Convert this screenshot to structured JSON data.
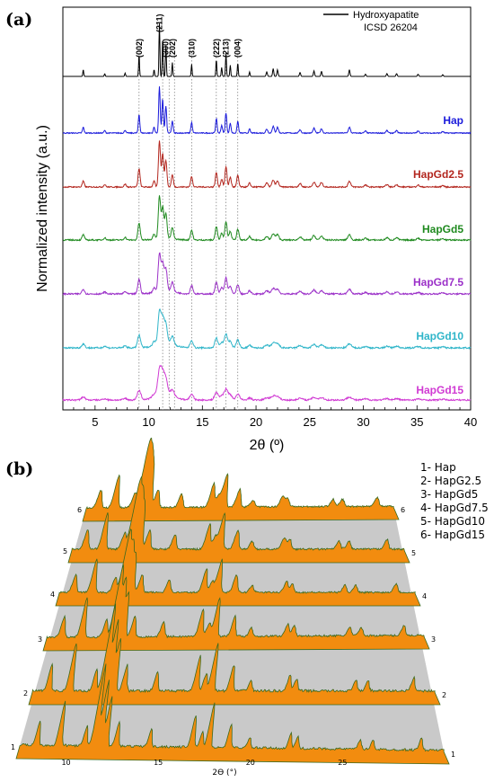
{
  "chart_data": [
    {
      "panel": "(a)",
      "type": "line",
      "xlabel": "2θ (º)",
      "ylabel": "Normalized intensity (a.u.)",
      "xlim": [
        2,
        40
      ],
      "x_ticks": [
        5,
        10,
        15,
        20,
        25,
        30,
        35,
        40
      ],
      "legend": {
        "entries": [
          "Hydroxyapatite",
          "ICSD 26204"
        ],
        "placement": "top-right"
      },
      "reference_lines": [
        9.1,
        11.3,
        11.9,
        12.4,
        14.0,
        16.3,
        17.2,
        18.3
      ],
      "miller_indices": [
        {
          "label": "(002)",
          "x": 9.1
        },
        {
          "label": "(211)",
          "x": 11.0
        },
        {
          "label": "(300)",
          "x": 11.6
        },
        {
          "label": "(202)",
          "x": 12.2
        },
        {
          "label": "(310)",
          "x": 14.0
        },
        {
          "label": "(222)",
          "x": 16.3
        },
        {
          "label": "(213)",
          "x": 17.2
        },
        {
          "label": "(004)",
          "x": 18.3
        }
      ],
      "peaks": [
        {
          "x": 3.9,
          "h": 0.12
        },
        {
          "x": 5.9,
          "h": 0.05
        },
        {
          "x": 7.8,
          "h": 0.06
        },
        {
          "x": 9.1,
          "h": 0.38
        },
        {
          "x": 10.5,
          "h": 0.12
        },
        {
          "x": 11.0,
          "h": 0.95
        },
        {
          "x": 11.3,
          "h": 0.7
        },
        {
          "x": 11.6,
          "h": 0.55
        },
        {
          "x": 12.2,
          "h": 0.25
        },
        {
          "x": 14.0,
          "h": 0.22
        },
        {
          "x": 16.3,
          "h": 0.3
        },
        {
          "x": 16.8,
          "h": 0.16
        },
        {
          "x": 17.2,
          "h": 0.42
        },
        {
          "x": 17.6,
          "h": 0.2
        },
        {
          "x": 18.3,
          "h": 0.24
        },
        {
          "x": 19.4,
          "h": 0.08
        },
        {
          "x": 21.0,
          "h": 0.08
        },
        {
          "x": 21.6,
          "h": 0.14
        },
        {
          "x": 22.0,
          "h": 0.12
        },
        {
          "x": 24.1,
          "h": 0.07
        },
        {
          "x": 25.4,
          "h": 0.1
        },
        {
          "x": 26.1,
          "h": 0.09
        },
        {
          "x": 28.7,
          "h": 0.12
        },
        {
          "x": 30.2,
          "h": 0.04
        },
        {
          "x": 32.2,
          "h": 0.05
        },
        {
          "x": 33.1,
          "h": 0.05
        },
        {
          "x": 35.1,
          "h": 0.04
        },
        {
          "x": 37.4,
          "h": 0.03
        }
      ],
      "series": [
        {
          "name": "Hydroxyapatite ICSD 26204",
          "color": "#000000",
          "amp": 1.0,
          "width": 0.06,
          "noise": 0.0
        },
        {
          "name": "Hap",
          "color": "#1a1adb",
          "amp": 1.0,
          "width": 0.1,
          "noise": 0.01
        },
        {
          "name": "HapGd2.5",
          "color": "#b3261e",
          "amp": 1.0,
          "width": 0.13,
          "noise": 0.012
        },
        {
          "name": "HapGd5",
          "color": "#1f8a1f",
          "amp": 0.95,
          "width": 0.15,
          "noise": 0.014
        },
        {
          "name": "HapGd7.5",
          "color": "#9b30c8",
          "amp": 0.9,
          "width": 0.17,
          "noise": 0.016
        },
        {
          "name": "HapGd10",
          "color": "#2fb5c9",
          "amp": 0.8,
          "width": 0.2,
          "noise": 0.018
        },
        {
          "name": "HapGd15",
          "color": "#d03ad3",
          "amp": 0.7,
          "width": 0.24,
          "noise": 0.02
        }
      ]
    },
    {
      "panel": "(b)",
      "type": "area",
      "xlabel": "2ϴ (°)",
      "x_ticks": [
        10,
        15,
        20,
        25
      ],
      "x_range": [
        7,
        30
      ],
      "fill_color": "#f28c0f",
      "line_color": "#3a6a1f",
      "wall_color": "#c9c9c9",
      "legend": [
        "1- Hap",
        "2- HapG2.5",
        "3- HapGd5",
        "4- HapGd7.5",
        "5- HapGd10",
        "6- HapGd15"
      ],
      "layer_numbers": [
        "1",
        "2",
        "3",
        "4",
        "5",
        "6"
      ]
    }
  ]
}
